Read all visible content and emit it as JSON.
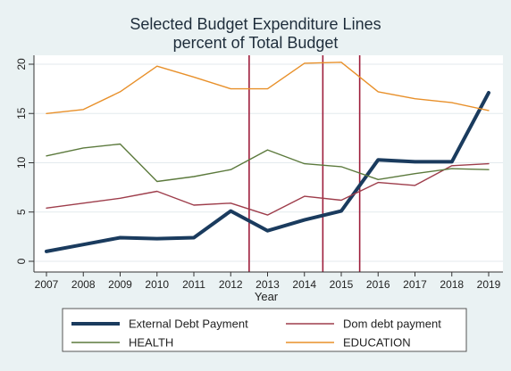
{
  "chart_data": {
    "type": "line",
    "title": [
      "Selected Budget Expenditure Lines",
      "percent of Total Budget"
    ],
    "xlabel": "Year",
    "ylabel": "",
    "x": [
      2007,
      2008,
      2009,
      2010,
      2011,
      2012,
      2013,
      2014,
      2015,
      2016,
      2017,
      2018,
      2019
    ],
    "xlim": [
      2007,
      2019
    ],
    "ylim": [
      0,
      20
    ],
    "yticks": [
      0,
      5,
      10,
      15,
      20
    ],
    "grid": true,
    "vlines": [
      2012.5,
      2014.5,
      2015.5
    ],
    "legend_position": "bottom",
    "series": [
      {
        "name": "External Debt Payment",
        "color": "#1a3b5e",
        "width": 4,
        "values": [
          1.0,
          1.7,
          2.4,
          2.3,
          2.4,
          5.1,
          3.1,
          4.2,
          5.1,
          10.3,
          10.1,
          10.1,
          17.1
        ]
      },
      {
        "name": "Dom debt payment",
        "color": "#9e3d4b",
        "width": 1.4,
        "values": [
          5.4,
          5.9,
          6.4,
          7.1,
          5.7,
          5.9,
          4.7,
          6.6,
          6.2,
          8.0,
          7.7,
          9.7,
          9.9
        ]
      },
      {
        "name": "HEALTH",
        "color": "#5c7a3d",
        "width": 1.4,
        "values": [
          10.7,
          11.5,
          11.9,
          8.1,
          8.6,
          9.3,
          11.3,
          9.9,
          9.6,
          8.3,
          8.9,
          9.4,
          9.3
        ]
      },
      {
        "name": "EDUCATION",
        "color": "#e8902a",
        "width": 1.4,
        "values": [
          15.0,
          15.4,
          17.2,
          19.8,
          18.7,
          17.5,
          17.5,
          20.1,
          20.2,
          17.2,
          16.5,
          16.1,
          15.3
        ]
      }
    ]
  }
}
